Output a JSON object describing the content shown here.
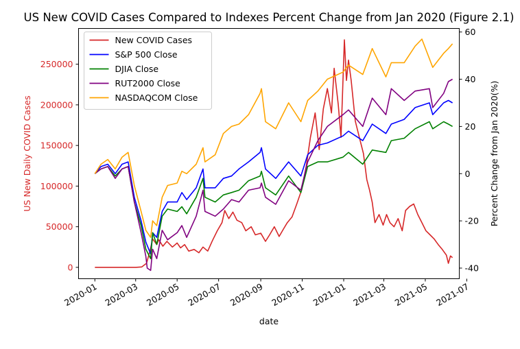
{
  "chart_data": {
    "type": "line",
    "title": "US New COVID Cases Compared to Indexes Percent Change from Jan 2020 (Figure 2.1)",
    "xlabel": "date",
    "ylabel_left": "US New Daily COVID Cases",
    "ylabel_right": "Percent Change from Jan 2020(%)",
    "x_ticks": [
      "2020-01",
      "2020-03",
      "2020-05",
      "2020-07",
      "2020-09",
      "2020-11",
      "2021-01",
      "2021-03",
      "2021-05",
      "2021-07"
    ],
    "y_left_ticks": [
      0,
      50000,
      100000,
      150000,
      200000,
      250000
    ],
    "y_right_ticks": [
      -40,
      -20,
      0,
      20,
      40,
      60
    ],
    "ylim_left": [
      -14000,
      294000
    ],
    "ylim_right": [
      -44.5,
      61.5
    ],
    "xlim": [
      "2019-12-08",
      "2021-06-20"
    ],
    "left_axis_color": "#d62728",
    "legend": {
      "placement": "top-left"
    },
    "series": [
      {
        "name": "New COVID Cases",
        "axis": "left",
        "color": "#d62728",
        "points": [
          [
            "2020-01-01",
            0
          ],
          [
            "2020-02-01",
            0
          ],
          [
            "2020-03-01",
            0
          ],
          [
            "2020-03-10",
            500
          ],
          [
            "2020-03-17",
            5000
          ],
          [
            "2020-03-22",
            20000
          ],
          [
            "2020-03-26",
            35000
          ],
          [
            "2020-04-01",
            28000
          ],
          [
            "2020-04-04",
            34000
          ],
          [
            "2020-04-10",
            26000
          ],
          [
            "2020-04-16",
            32000
          ],
          [
            "2020-04-24",
            25000
          ],
          [
            "2020-05-01",
            30000
          ],
          [
            "2020-05-06",
            24000
          ],
          [
            "2020-05-12",
            28000
          ],
          [
            "2020-05-18",
            20000
          ],
          [
            "2020-05-26",
            22000
          ],
          [
            "2020-06-02",
            18000
          ],
          [
            "2020-06-08",
            25000
          ],
          [
            "2020-06-15",
            20000
          ],
          [
            "2020-06-22",
            33000
          ],
          [
            "2020-06-29",
            45000
          ],
          [
            "2020-07-06",
            55000
          ],
          [
            "2020-07-10",
            70000
          ],
          [
            "2020-07-16",
            60000
          ],
          [
            "2020-07-22",
            68000
          ],
          [
            "2020-07-28",
            58000
          ],
          [
            "2020-08-04",
            55000
          ],
          [
            "2020-08-10",
            45000
          ],
          [
            "2020-08-18",
            50000
          ],
          [
            "2020-08-24",
            40000
          ],
          [
            "2020-09-01",
            42000
          ],
          [
            "2020-09-08",
            32000
          ],
          [
            "2020-09-14",
            40000
          ],
          [
            "2020-09-21",
            50000
          ],
          [
            "2020-09-28",
            38000
          ],
          [
            "2020-10-05",
            48000
          ],
          [
            "2020-10-10",
            55000
          ],
          [
            "2020-10-17",
            62000
          ],
          [
            "2020-10-24",
            78000
          ],
          [
            "2020-10-31",
            95000
          ],
          [
            "2020-11-07",
            125000
          ],
          [
            "2020-11-13",
            160000
          ],
          [
            "2020-11-20",
            190000
          ],
          [
            "2020-11-26",
            145000
          ],
          [
            "2020-12-02",
            195000
          ],
          [
            "2020-12-08",
            220000
          ],
          [
            "2020-12-14",
            190000
          ],
          [
            "2020-12-18",
            245000
          ],
          [
            "2020-12-24",
            200000
          ],
          [
            "2020-12-28",
            160000
          ],
          [
            "2021-01-02",
            280000
          ],
          [
            "2021-01-05",
            230000
          ],
          [
            "2021-01-08",
            255000
          ],
          [
            "2021-01-12",
            230000
          ],
          [
            "2021-01-18",
            180000
          ],
          [
            "2021-01-24",
            160000
          ],
          [
            "2021-01-30",
            140000
          ],
          [
            "2021-02-04",
            108000
          ],
          [
            "2021-02-08",
            95000
          ],
          [
            "2021-02-12",
            80000
          ],
          [
            "2021-02-16",
            55000
          ],
          [
            "2021-02-22",
            65000
          ],
          [
            "2021-02-28",
            52000
          ],
          [
            "2021-03-05",
            65000
          ],
          [
            "2021-03-10",
            55000
          ],
          [
            "2021-03-16",
            50000
          ],
          [
            "2021-03-22",
            60000
          ],
          [
            "2021-03-28",
            45000
          ],
          [
            "2021-04-02",
            70000
          ],
          [
            "2021-04-08",
            75000
          ],
          [
            "2021-04-14",
            78000
          ],
          [
            "2021-04-20",
            65000
          ],
          [
            "2021-04-26",
            55000
          ],
          [
            "2021-05-02",
            45000
          ],
          [
            "2021-05-08",
            40000
          ],
          [
            "2021-05-14",
            35000
          ],
          [
            "2021-05-20",
            28000
          ],
          [
            "2021-05-26",
            22000
          ],
          [
            "2021-06-01",
            15000
          ],
          [
            "2021-06-04",
            5000
          ],
          [
            "2021-06-07",
            14000
          ],
          [
            "2021-06-10",
            12000
          ]
        ]
      },
      {
        "name": "S&P 500 Close",
        "axis": "right",
        "color": "#0000ff",
        "points": [
          [
            "2020-01-01",
            0
          ],
          [
            "2020-01-10",
            3
          ],
          [
            "2020-01-20",
            4
          ],
          [
            "2020-01-31",
            0
          ],
          [
            "2020-02-10",
            4
          ],
          [
            "2020-02-19",
            5
          ],
          [
            "2020-02-28",
            -10
          ],
          [
            "2020-03-09",
            -20
          ],
          [
            "2020-03-16",
            -29
          ],
          [
            "2020-03-23",
            -34
          ],
          [
            "2020-03-26",
            -25
          ],
          [
            "2020-04-01",
            -27
          ],
          [
            "2020-04-09",
            -16
          ],
          [
            "2020-04-17",
            -12
          ],
          [
            "2020-05-01",
            -12
          ],
          [
            "2020-05-08",
            -8
          ],
          [
            "2020-05-15",
            -11
          ],
          [
            "2020-05-29",
            -6
          ],
          [
            "2020-06-08",
            2
          ],
          [
            "2020-06-11",
            -6
          ],
          [
            "2020-06-26",
            -6
          ],
          [
            "2020-07-08",
            -2
          ],
          [
            "2020-07-20",
            -1
          ],
          [
            "2020-07-31",
            2
          ],
          [
            "2020-08-14",
            5
          ],
          [
            "2020-08-31",
            9
          ],
          [
            "2020-09-02",
            11
          ],
          [
            "2020-09-08",
            2
          ],
          [
            "2020-09-23",
            -2
          ],
          [
            "2020-10-12",
            5
          ],
          [
            "2020-10-30",
            -1
          ],
          [
            "2020-11-09",
            8
          ],
          [
            "2020-11-24",
            12
          ],
          [
            "2020-12-08",
            13
          ],
          [
            "2020-12-31",
            16
          ],
          [
            "2021-01-08",
            18
          ],
          [
            "2021-01-29",
            14
          ],
          [
            "2021-02-12",
            21
          ],
          [
            "2021-03-04",
            17
          ],
          [
            "2021-03-12",
            21
          ],
          [
            "2021-03-31",
            23
          ],
          [
            "2021-04-16",
            28
          ],
          [
            "2021-05-07",
            30
          ],
          [
            "2021-05-12",
            25
          ],
          [
            "2021-05-28",
            30
          ],
          [
            "2021-06-04",
            31
          ],
          [
            "2021-06-10",
            30
          ]
        ]
      },
      {
        "name": "DJIA Close",
        "axis": "right",
        "color": "#008000",
        "points": [
          [
            "2020-01-01",
            0
          ],
          [
            "2020-01-10",
            2
          ],
          [
            "2020-01-20",
            3
          ],
          [
            "2020-01-31",
            -1
          ],
          [
            "2020-02-10",
            2
          ],
          [
            "2020-02-19",
            3
          ],
          [
            "2020-02-28",
            -12
          ],
          [
            "2020-03-09",
            -22
          ],
          [
            "2020-03-16",
            -32
          ],
          [
            "2020-03-23",
            -36
          ],
          [
            "2020-03-26",
            -25
          ],
          [
            "2020-04-01",
            -30
          ],
          [
            "2020-04-09",
            -18
          ],
          [
            "2020-04-17",
            -15
          ],
          [
            "2020-05-01",
            -16
          ],
          [
            "2020-05-08",
            -14
          ],
          [
            "2020-05-15",
            -17
          ],
          [
            "2020-05-29",
            -10
          ],
          [
            "2020-06-08",
            -2
          ],
          [
            "2020-06-11",
            -10
          ],
          [
            "2020-06-26",
            -12
          ],
          [
            "2020-07-08",
            -9
          ],
          [
            "2020-07-20",
            -8
          ],
          [
            "2020-07-31",
            -7
          ],
          [
            "2020-08-14",
            -3
          ],
          [
            "2020-08-31",
            -1
          ],
          [
            "2020-09-02",
            1
          ],
          [
            "2020-09-08",
            -6
          ],
          [
            "2020-09-23",
            -9
          ],
          [
            "2020-10-12",
            -1
          ],
          [
            "2020-10-30",
            -8
          ],
          [
            "2020-11-09",
            3
          ],
          [
            "2020-11-24",
            5
          ],
          [
            "2020-12-08",
            5
          ],
          [
            "2020-12-31",
            7
          ],
          [
            "2021-01-08",
            9
          ],
          [
            "2021-01-29",
            4
          ],
          [
            "2021-02-12",
            10
          ],
          [
            "2021-03-04",
            9
          ],
          [
            "2021-03-12",
            14
          ],
          [
            "2021-03-31",
            15
          ],
          [
            "2021-04-16",
            19
          ],
          [
            "2021-05-07",
            22
          ],
          [
            "2021-05-12",
            19
          ],
          [
            "2021-05-28",
            22
          ],
          [
            "2021-06-04",
            21
          ],
          [
            "2021-06-10",
            20
          ]
        ]
      },
      {
        "name": "RUT2000 Close",
        "axis": "right",
        "color": "#800080",
        "points": [
          [
            "2020-01-01",
            0
          ],
          [
            "2020-01-10",
            2
          ],
          [
            "2020-01-20",
            3
          ],
          [
            "2020-01-31",
            -2
          ],
          [
            "2020-02-10",
            2
          ],
          [
            "2020-02-19",
            3
          ],
          [
            "2020-02-28",
            -12
          ],
          [
            "2020-03-09",
            -25
          ],
          [
            "2020-03-16",
            -35
          ],
          [
            "2020-03-18",
            -40
          ],
          [
            "2020-03-23",
            -41
          ],
          [
            "2020-03-26",
            -32
          ],
          [
            "2020-04-01",
            -36
          ],
          [
            "2020-04-09",
            -24
          ],
          [
            "2020-04-17",
            -28
          ],
          [
            "2020-05-01",
            -25
          ],
          [
            "2020-05-08",
            -22
          ],
          [
            "2020-05-15",
            -27
          ],
          [
            "2020-05-29",
            -18
          ],
          [
            "2020-06-08",
            -7
          ],
          [
            "2020-06-11",
            -16
          ],
          [
            "2020-06-26",
            -18
          ],
          [
            "2020-07-08",
            -15
          ],
          [
            "2020-07-20",
            -11
          ],
          [
            "2020-07-31",
            -12
          ],
          [
            "2020-08-14",
            -7
          ],
          [
            "2020-08-31",
            -6
          ],
          [
            "2020-09-02",
            -4
          ],
          [
            "2020-09-08",
            -10
          ],
          [
            "2020-09-23",
            -13
          ],
          [
            "2020-10-12",
            -3
          ],
          [
            "2020-10-30",
            -7
          ],
          [
            "2020-11-09",
            5
          ],
          [
            "2020-11-24",
            14
          ],
          [
            "2020-12-08",
            20
          ],
          [
            "2020-12-31",
            25
          ],
          [
            "2021-01-08",
            27
          ],
          [
            "2021-01-29",
            20
          ],
          [
            "2021-02-12",
            32
          ],
          [
            "2021-03-04",
            25
          ],
          [
            "2021-03-12",
            36
          ],
          [
            "2021-03-31",
            31
          ],
          [
            "2021-04-16",
            35
          ],
          [
            "2021-05-07",
            36
          ],
          [
            "2021-05-12",
            28
          ],
          [
            "2021-05-28",
            34
          ],
          [
            "2021-06-04",
            39
          ],
          [
            "2021-06-10",
            40
          ]
        ]
      },
      {
        "name": "NASDAQCOM Close",
        "axis": "right",
        "color": "#ffa500",
        "points": [
          [
            "2020-01-01",
            0
          ],
          [
            "2020-01-10",
            4
          ],
          [
            "2020-01-20",
            6
          ],
          [
            "2020-01-31",
            2
          ],
          [
            "2020-02-10",
            7
          ],
          [
            "2020-02-19",
            9
          ],
          [
            "2020-02-28",
            -5
          ],
          [
            "2020-03-09",
            -16
          ],
          [
            "2020-03-16",
            -24
          ],
          [
            "2020-03-23",
            -27
          ],
          [
            "2020-03-26",
            -20
          ],
          [
            "2020-04-01",
            -22
          ],
          [
            "2020-04-09",
            -10
          ],
          [
            "2020-04-17",
            -5
          ],
          [
            "2020-05-01",
            -4
          ],
          [
            "2020-05-08",
            1
          ],
          [
            "2020-05-15",
            0
          ],
          [
            "2020-05-29",
            4
          ],
          [
            "2020-06-08",
            11
          ],
          [
            "2020-06-11",
            5
          ],
          [
            "2020-06-26",
            8
          ],
          [
            "2020-07-08",
            17
          ],
          [
            "2020-07-20",
            20
          ],
          [
            "2020-07-31",
            21
          ],
          [
            "2020-08-14",
            25
          ],
          [
            "2020-08-31",
            34
          ],
          [
            "2020-09-02",
            36
          ],
          [
            "2020-09-08",
            22
          ],
          [
            "2020-09-23",
            19
          ],
          [
            "2020-10-12",
            30
          ],
          [
            "2020-10-30",
            22
          ],
          [
            "2020-11-09",
            31
          ],
          [
            "2020-11-24",
            35
          ],
          [
            "2020-12-08",
            40
          ],
          [
            "2020-12-31",
            43
          ],
          [
            "2021-01-08",
            46
          ],
          [
            "2021-01-29",
            42
          ],
          [
            "2021-02-12",
            53
          ],
          [
            "2021-03-04",
            41
          ],
          [
            "2021-03-12",
            47
          ],
          [
            "2021-03-31",
            47
          ],
          [
            "2021-04-16",
            54
          ],
          [
            "2021-04-26",
            57
          ],
          [
            "2021-05-12",
            45
          ],
          [
            "2021-05-28",
            51
          ],
          [
            "2021-06-04",
            53
          ],
          [
            "2021-06-10",
            55
          ]
        ]
      }
    ]
  }
}
